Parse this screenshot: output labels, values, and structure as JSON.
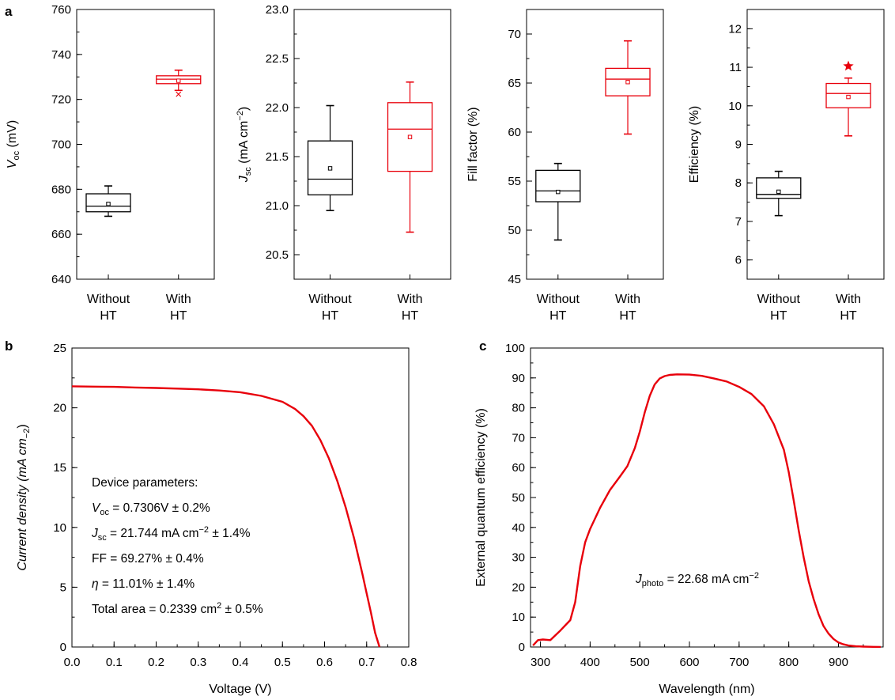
{
  "panels": {
    "a": "a",
    "b": "b",
    "c": "c"
  },
  "colors": {
    "without": "#000000",
    "with": "#e8000b",
    "curve": "#e8000b"
  },
  "chart_data": [
    {
      "id": "voc",
      "type": "box",
      "ylabel": [
        "V",
        "oc",
        " (mV)"
      ],
      "ylim": [
        640,
        760
      ],
      "yticks": [
        640,
        660,
        680,
        700,
        720,
        740,
        760
      ],
      "ytick_labels": [
        "640",
        "660",
        "680",
        "700",
        "720",
        "740",
        "760"
      ],
      "yminor": 10,
      "categories": [
        [
          "Without",
          "HT"
        ],
        [
          "With",
          "HT"
        ]
      ],
      "boxes": [
        {
          "name": "Without HT",
          "color": "#000000",
          "whisker_low": 668,
          "q1": 670,
          "median": 672.5,
          "q3": 678,
          "whisker_high": 681.5,
          "mean": 673.5,
          "outliers": []
        },
        {
          "name": "With HT",
          "color": "#e8000b",
          "whisker_low": 724,
          "q1": 727,
          "median": 729,
          "q3": 730.5,
          "whisker_high": 733,
          "mean": 728.3,
          "outliers": [
            722.3
          ]
        }
      ]
    },
    {
      "id": "jsc",
      "type": "box",
      "ylabel": [
        "J",
        "sc",
        " (mA cm",
        "−2",
        ")"
      ],
      "ylim": [
        20.25,
        23.0
      ],
      "yticks": [
        20.5,
        21.0,
        21.5,
        22.0,
        22.5,
        23.0
      ],
      "ytick_labels": [
        "20.5",
        "21.0",
        "21.5",
        "22.0",
        "22.5",
        "23.0"
      ],
      "yminor": 0.25,
      "categories": [
        [
          "Without",
          "HT"
        ],
        [
          "With",
          "HT"
        ]
      ],
      "boxes": [
        {
          "name": "Without HT",
          "color": "#000000",
          "whisker_low": 20.95,
          "q1": 21.11,
          "median": 21.27,
          "q3": 21.66,
          "whisker_high": 22.02,
          "mean": 21.38,
          "outliers": []
        },
        {
          "name": "With HT",
          "color": "#e8000b",
          "whisker_low": 20.73,
          "q1": 21.35,
          "median": 21.78,
          "q3": 22.05,
          "whisker_high": 22.26,
          "mean": 21.7,
          "outliers": []
        }
      ]
    },
    {
      "id": "ff",
      "type": "box",
      "ylabel": [
        "Fill factor (%)"
      ],
      "ylim": [
        45,
        72.5
      ],
      "yticks": [
        45,
        50,
        55,
        60,
        65,
        70
      ],
      "ytick_labels": [
        "45",
        "50",
        "55",
        "60",
        "65",
        "70"
      ],
      "yminor": 2.5,
      "categories": [
        [
          "Without",
          "HT"
        ],
        [
          "With",
          "HT"
        ]
      ],
      "boxes": [
        {
          "name": "Without HT",
          "color": "#000000",
          "whisker_low": 49.0,
          "q1": 52.9,
          "median": 54.0,
          "q3": 56.1,
          "whisker_high": 56.8,
          "mean": 53.9,
          "outliers": []
        },
        {
          "name": "With HT",
          "color": "#e8000b",
          "whisker_low": 59.8,
          "q1": 63.7,
          "median": 65.4,
          "q3": 66.5,
          "whisker_high": 69.3,
          "mean": 65.1,
          "outliers": []
        }
      ]
    },
    {
      "id": "eff",
      "type": "box",
      "ylabel": [
        "Efficiency (%)"
      ],
      "ylim": [
        5.5,
        12.5
      ],
      "yticks": [
        6,
        7,
        8,
        9,
        10,
        11,
        12
      ],
      "ytick_labels": [
        "6",
        "7",
        "8",
        "9",
        "10",
        "11",
        "12"
      ],
      "yminor": 0.5,
      "categories": [
        [
          "Without",
          "HT"
        ],
        [
          "With",
          "HT"
        ]
      ],
      "boxes": [
        {
          "name": "Without HT",
          "color": "#000000",
          "whisker_low": 7.15,
          "q1": 7.6,
          "median": 7.7,
          "q3": 8.13,
          "whisker_high": 8.3,
          "mean": 7.77,
          "outliers": []
        },
        {
          "name": "With HT",
          "color": "#e8000b",
          "whisker_low": 9.22,
          "q1": 9.95,
          "median": 10.32,
          "q3": 10.58,
          "whisker_high": 10.72,
          "mean": 10.23,
          "outliers": [],
          "star": 11.03
        }
      ]
    },
    {
      "id": "iv",
      "type": "line",
      "xlabel": "Voltage (V)",
      "ylabel": [
        "Current density (mA cm",
        "−2",
        ")"
      ],
      "xlim": [
        0,
        0.8
      ],
      "ylim": [
        0,
        25
      ],
      "xticks": [
        0,
        0.1,
        0.2,
        0.3,
        0.4,
        0.5,
        0.6,
        0.7,
        0.8
      ],
      "xtick_labels": [
        "0.0",
        "0.1",
        "0.2",
        "0.3",
        "0.4",
        "0.5",
        "0.6",
        "0.7",
        "0.8"
      ],
      "yticks": [
        0,
        5,
        10,
        15,
        20,
        25
      ],
      "ytick_labels": [
        "0",
        "5",
        "10",
        "15",
        "20",
        "25"
      ],
      "xminor": 0.05,
      "yminor": 2.5,
      "x": [
        0,
        0.05,
        0.1,
        0.15,
        0.2,
        0.25,
        0.3,
        0.35,
        0.4,
        0.45,
        0.5,
        0.53,
        0.55,
        0.57,
        0.59,
        0.61,
        0.63,
        0.65,
        0.67,
        0.69,
        0.7,
        0.71,
        0.72,
        0.7306
      ],
      "y": [
        21.8,
        21.77,
        21.75,
        21.7,
        21.66,
        21.61,
        21.55,
        21.45,
        21.3,
        21.0,
        20.5,
        19.9,
        19.3,
        18.5,
        17.3,
        15.8,
        13.9,
        11.7,
        9.1,
        6.1,
        4.5,
        2.9,
        1.2,
        0
      ],
      "annotation": {
        "heading": "Device parameters:",
        "voc": {
          "sym": "V",
          "sub": "oc",
          "rest": " = 0.7306V ± 0.2%"
        },
        "jsc": {
          "sym": "J",
          "sub": "sc",
          "mid": " = 21.744 mA cm",
          "sup": "−2",
          "rest": " ± 1.4%"
        },
        "ff": "FF = 69.27% ± 0.4%",
        "eta": {
          "sym": "η",
          "rest": " = 11.01% ± 1.4%"
        },
        "area": {
          "pre": "Total area = 0.2339 cm",
          "sup": "2",
          "rest": " ± 0.5%"
        }
      }
    },
    {
      "id": "eqe",
      "type": "line",
      "xlabel": "Wavelength (nm)",
      "ylabel": [
        "External quantum efficiency (%)"
      ],
      "xlim": [
        280,
        990
      ],
      "ylim": [
        0,
        100
      ],
      "xticks": [
        300,
        400,
        500,
        600,
        700,
        800,
        900
      ],
      "xtick_labels": [
        "300",
        "400",
        "500",
        "600",
        "700",
        "800",
        "900"
      ],
      "yticks": [
        0,
        10,
        20,
        30,
        40,
        50,
        60,
        70,
        80,
        90,
        100
      ],
      "ytick_labels": [
        "0",
        "10",
        "20",
        "30",
        "40",
        "50",
        "60",
        "70",
        "80",
        "90",
        "100"
      ],
      "xminor": 50,
      "yminor": 5,
      "x": [
        285,
        295,
        305,
        320,
        340,
        360,
        370,
        380,
        390,
        400,
        420,
        440,
        460,
        475,
        490,
        500,
        510,
        520,
        530,
        540,
        550,
        560,
        575,
        600,
        625,
        650,
        675,
        700,
        725,
        750,
        770,
        790,
        800,
        810,
        820,
        830,
        840,
        850,
        860,
        870,
        880,
        890,
        900,
        910,
        920,
        935,
        950,
        970,
        985
      ],
      "y": [
        0.5,
        2.3,
        2.5,
        2.3,
        5.5,
        9,
        15,
        27,
        35,
        39.5,
        46.5,
        52.5,
        57,
        60.5,
        66.5,
        72,
        78.5,
        84,
        87.8,
        89.8,
        90.6,
        91,
        91.2,
        91.1,
        90.7,
        89.8,
        88.8,
        87,
        84.6,
        80.5,
        74.5,
        66,
        58.5,
        49,
        39,
        30,
        22,
        16,
        11,
        7,
        4.5,
        2.7,
        1.5,
        0.9,
        0.5,
        0.25,
        0.12,
        0.05,
        0.02
      ],
      "annotation": {
        "sym": "J",
        "sub": "photo",
        "rest": " = 22.68 mA cm",
        "sup": "−2"
      }
    }
  ]
}
